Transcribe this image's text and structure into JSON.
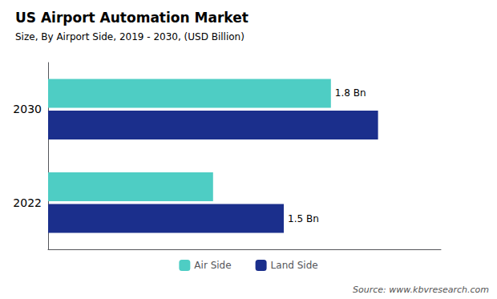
{
  "chart_data": {
    "type": "bar",
    "orientation": "horizontal",
    "title": "US Airport Automation Market",
    "subtitle": "Size, By Airport Side, 2019 - 2030, (USD Billion)",
    "annotations": [
      "Source: www.kbvresearch.com"
    ],
    "categories": [
      "2030",
      "2022"
    ],
    "series": [
      {
        "name": "Air Side",
        "color": "#4ECDC4",
        "values": [
          1.8,
          1.05
        ],
        "value_labels": [
          "1.8 Bn",
          null
        ]
      },
      {
        "name": "Land Side",
        "color": "#1B2F8C",
        "values": [
          2.1,
          1.5
        ],
        "value_labels": [
          null,
          "1.5 Bn"
        ]
      }
    ],
    "xlim": [
      0,
      2.5
    ],
    "tick_labels": "y",
    "grid": false,
    "legend": "bottom"
  }
}
